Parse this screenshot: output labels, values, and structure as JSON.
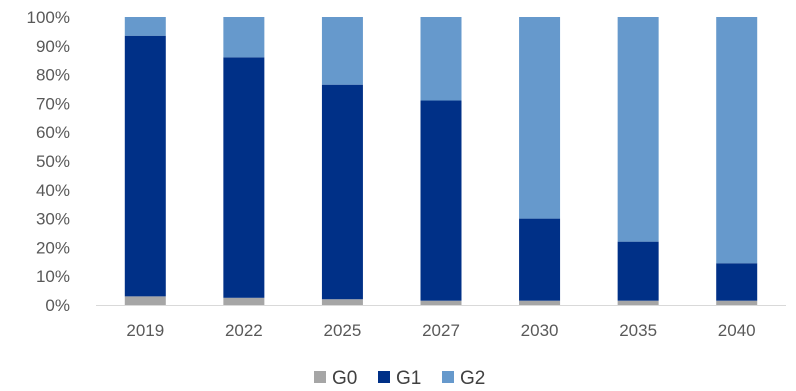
{
  "chart_data": {
    "type": "bar",
    "stacked": true,
    "percent": true,
    "title": "",
    "xlabel": "",
    "ylabel": "",
    "categories": [
      "2019",
      "2022",
      "2025",
      "2027",
      "2030",
      "2035",
      "2040"
    ],
    "ylim": [
      0,
      100
    ],
    "y_ticks": [
      "0%",
      "10%",
      "20%",
      "30%",
      "40%",
      "50%",
      "60%",
      "70%",
      "80%",
      "90%",
      "100%"
    ],
    "grid": false,
    "legend_position": "bottom",
    "series": [
      {
        "name": "G0",
        "color": "#a6a6a6",
        "values": [
          3,
          2.5,
          2,
          1.5,
          1.5,
          1.5,
          1.5
        ]
      },
      {
        "name": "G1",
        "color": "#003087",
        "values": [
          90.5,
          83.5,
          74.5,
          69.5,
          28.5,
          20.5,
          13
        ]
      },
      {
        "name": "G2",
        "color": "#6699cc",
        "values": [
          6.5,
          14,
          23.5,
          29,
          70,
          78,
          85.5
        ]
      }
    ]
  }
}
